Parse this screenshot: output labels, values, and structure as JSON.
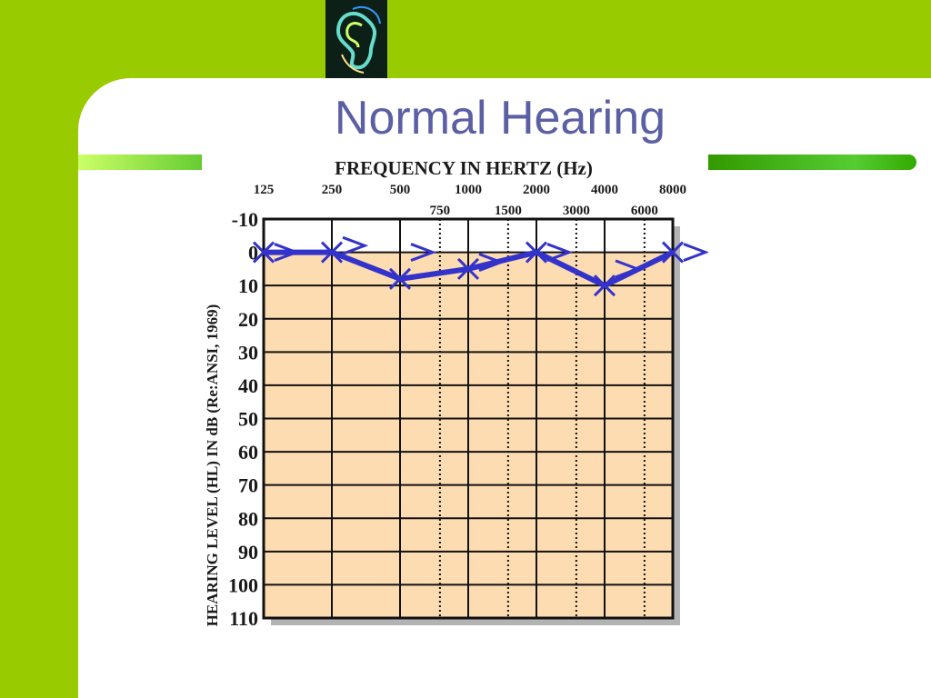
{
  "slide": {
    "title": "Normal Hearing"
  },
  "colors": {
    "background_green": "#99cc00",
    "title_color": "#5b5fa3",
    "plot_fill": "#fddcb1",
    "series_color": "#3333cc"
  },
  "logo": {
    "icon": "ear-icon"
  },
  "chart_data": {
    "type": "line",
    "title": "FREQUENCY IN HERTZ (Hz)",
    "ylabel": "HEARING LEVEL (HL) IN dB (Re:ANSI, 1969)",
    "x_ticks_primary": [
      "125",
      "250",
      "500",
      "1000",
      "2000",
      "4000",
      "8000"
    ],
    "x_ticks_secondary": [
      "750",
      "1500",
      "3000",
      "6000"
    ],
    "y_ticks": [
      "-10",
      "0",
      "10",
      "20",
      "30",
      "40",
      "50",
      "60",
      "70",
      "80",
      "90",
      "100",
      "110"
    ],
    "ylim": [
      -10,
      110
    ],
    "y_inverted": true,
    "x_scale": "log2",
    "grid": true,
    "series": [
      {
        "marker": "x",
        "x": [
          125,
          250,
          500,
          1000,
          2000,
          4000,
          8000
        ],
        "y": [
          0,
          0,
          8,
          5,
          0,
          10,
          0
        ]
      },
      {
        "marker": ">",
        "x": [
          125,
          250,
          500,
          1000,
          2000,
          4000,
          8000
        ],
        "y": [
          0,
          -2,
          0,
          3,
          0,
          5,
          0
        ]
      }
    ]
  }
}
